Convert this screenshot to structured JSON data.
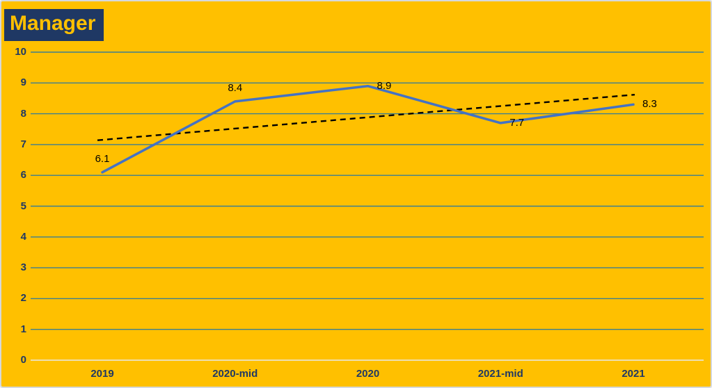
{
  "chart_data": {
    "type": "line",
    "title": "Manager",
    "categories": [
      "2019",
      "2020-mid",
      "2020",
      "2021-mid",
      "2021"
    ],
    "series": [
      {
        "name": "Manager",
        "values": [
          6.1,
          8.4,
          8.9,
          7.7,
          8.3
        ]
      }
    ],
    "data_labels": [
      "6.1",
      "8.4",
      "8.9",
      "7.7",
      "8.3"
    ],
    "data_label_placement": [
      "above",
      "above",
      "right",
      "right",
      "right"
    ],
    "trendline": {
      "style": "dashed",
      "start_value": 7.14,
      "end_value": 8.62
    },
    "xlabel": "",
    "ylabel": "",
    "ylim": [
      0,
      10
    ],
    "y_tick_step": 1,
    "y_ticks": [
      "0",
      "1",
      "2",
      "3",
      "4",
      "5",
      "6",
      "7",
      "8",
      "9",
      "10"
    ],
    "grid": "on",
    "legend": "none",
    "colors": {
      "background": "#FFC000",
      "frame_border": "#D6D9DD",
      "title_background": "#1F3864",
      "title_text": "#FFC000",
      "axis_label_text": "#1F3864",
      "gridline": "#3A7E93",
      "zero_axis_line": "#E8E8E8",
      "series_line": "#4472C4",
      "trendline": "#000000",
      "data_label_text": "#000000"
    }
  }
}
